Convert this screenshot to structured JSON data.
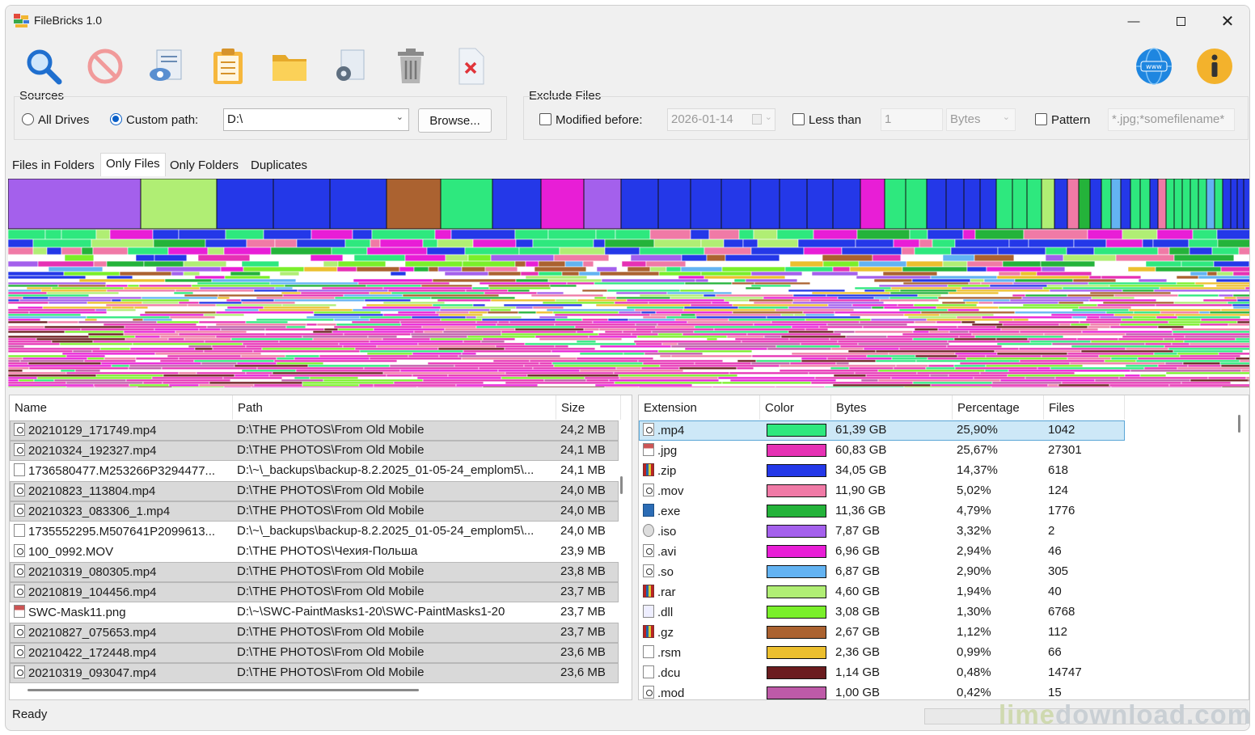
{
  "window": {
    "title": "FileBricks 1.0"
  },
  "toolbar": {
    "icons": [
      "search-icon",
      "stop-icon",
      "preview-icon",
      "clipboard-icon",
      "folder-icon",
      "settings-icon",
      "trash-icon",
      "delete-file-icon",
      "web-icon",
      "info-icon"
    ]
  },
  "sources": {
    "label": "Sources",
    "all_drives": "All Drives",
    "custom_path": "Custom path:",
    "path_value": "D:\\",
    "browse": "Browse..."
  },
  "exclude": {
    "label": "Exclude Files",
    "modified_before": "Modified before:",
    "date_value": "2026-01-14",
    "less_than": "Less than",
    "size_value": "1",
    "unit": "Bytes",
    "pattern": "Pattern",
    "pattern_value": "*.jpg;*somefilename*"
  },
  "tabs": [
    "Files in Folders",
    "Only Files",
    "Only Folders",
    "Duplicates"
  ],
  "active_tab": "Only Files",
  "files": {
    "columns": [
      "Name",
      "Path",
      "Size"
    ],
    "rows": [
      {
        "name": "20210129_171749.mp4",
        "path": "D:\\THE PHOTOS\\From Old Mobile",
        "size": "24,2 MB",
        "icon": "vid",
        "sel": true
      },
      {
        "name": "20210324_192327.mp4",
        "path": "D:\\THE PHOTOS\\From Old Mobile",
        "size": "24,1 MB",
        "icon": "vid",
        "sel": true
      },
      {
        "name": "1736580477.M253266P3294477...",
        "path": "D:\\~\\_backups\\backup-8.2.2025_01-05-24_emplom5\\...",
        "size": "24,1 MB",
        "icon": "doc",
        "sel": false
      },
      {
        "name": "20210823_113804.mp4",
        "path": "D:\\THE PHOTOS\\From Old Mobile",
        "size": "24,0 MB",
        "icon": "vid",
        "sel": true
      },
      {
        "name": "20210323_083306_1.mp4",
        "path": "D:\\THE PHOTOS\\From Old Mobile",
        "size": "24,0 MB",
        "icon": "vid",
        "sel": true
      },
      {
        "name": "1735552295.M507641P2099613...",
        "path": "D:\\~\\_backups\\backup-8.2.2025_01-05-24_emplom5\\...",
        "size": "24,0 MB",
        "icon": "doc",
        "sel": false
      },
      {
        "name": "100_0992.MOV",
        "path": "D:\\THE PHOTOS\\Чехия-Польша",
        "size": "23,9 MB",
        "icon": "vid",
        "sel": false
      },
      {
        "name": "20210319_080305.mp4",
        "path": "D:\\THE PHOTOS\\From Old Mobile",
        "size": "23,8 MB",
        "icon": "vid",
        "sel": true
      },
      {
        "name": "20210819_104456.mp4",
        "path": "D:\\THE PHOTOS\\From Old Mobile",
        "size": "23,7 MB",
        "icon": "vid",
        "sel": true
      },
      {
        "name": "SWC-Mask11.png",
        "path": "D:\\~\\SWC-PaintMasks1-20\\SWC-PaintMasks1-20",
        "size": "23,7 MB",
        "icon": "img",
        "sel": false
      },
      {
        "name": "20210827_075653.mp4",
        "path": "D:\\THE PHOTOS\\From Old Mobile",
        "size": "23,7 MB",
        "icon": "vid",
        "sel": true
      },
      {
        "name": "20210422_172448.mp4",
        "path": "D:\\THE PHOTOS\\From Old Mobile",
        "size": "23,6 MB",
        "icon": "vid",
        "sel": true
      },
      {
        "name": "20210319_093047.mp4",
        "path": "D:\\THE PHOTOS\\From Old Mobile",
        "size": "23,6 MB",
        "icon": "vid",
        "sel": true
      }
    ]
  },
  "extensions": {
    "columns": [
      "Extension",
      "Color",
      "Bytes",
      "Percentage",
      "Files"
    ],
    "rows": [
      {
        "ext": ".mp4",
        "color": "#2ee87e",
        "bytes": "61,39 GB",
        "pct": "25,90%",
        "files": "1042",
        "icon": "vid"
      },
      {
        "ext": ".jpg",
        "color": "#e631b4",
        "bytes": "60,83 GB",
        "pct": "25,67%",
        "files": "27301",
        "icon": "img"
      },
      {
        "ext": ".zip",
        "color": "#2438e8",
        "bytes": "34,05 GB",
        "pct": "14,37%",
        "files": "618",
        "icon": "arc"
      },
      {
        "ext": ".mov",
        "color": "#f07aa6",
        "bytes": "11,90 GB",
        "pct": "5,02%",
        "files": "124",
        "icon": "vid"
      },
      {
        "ext": ".exe",
        "color": "#24b33a",
        "bytes": "11,36 GB",
        "pct": "4,79%",
        "files": "1776",
        "icon": "exe"
      },
      {
        "ext": ".iso",
        "color": "#a460ec",
        "bytes": "7,87 GB",
        "pct": "3,32%",
        "files": "2",
        "icon": "iso"
      },
      {
        "ext": ".avi",
        "color": "#e81ed6",
        "bytes": "6,96 GB",
        "pct": "2,94%",
        "files": "46",
        "icon": "vid"
      },
      {
        "ext": ".so",
        "color": "#63b3f2",
        "bytes": "6,87 GB",
        "pct": "2,90%",
        "files": "305",
        "icon": "vid"
      },
      {
        "ext": ".rar",
        "color": "#b0ee74",
        "bytes": "4,60 GB",
        "pct": "1,94%",
        "files": "40",
        "icon": "arc"
      },
      {
        "ext": ".dll",
        "color": "#7aef2a",
        "bytes": "3,08 GB",
        "pct": "1,30%",
        "files": "6768",
        "icon": "dll"
      },
      {
        "ext": ".gz",
        "color": "#ab6230",
        "bytes": "2,67 GB",
        "pct": "1,12%",
        "files": "112",
        "icon": "arc"
      },
      {
        "ext": ".rsm",
        "color": "#ecbf2e",
        "bytes": "2,36 GB",
        "pct": "0,99%",
        "files": "66",
        "icon": "doc"
      },
      {
        "ext": ".dcu",
        "color": "#6b1c1f",
        "bytes": "1,14 GB",
        "pct": "0,48%",
        "files": "14747",
        "icon": "doc"
      },
      {
        "ext": ".mod",
        "color": "#be5aa8",
        "bytes": "1,00 GB",
        "pct": "0,42%",
        "files": "15",
        "icon": "vid"
      }
    ]
  },
  "status": "Ready",
  "watermark": {
    "part1": "lime",
    "part2": "download.com"
  }
}
